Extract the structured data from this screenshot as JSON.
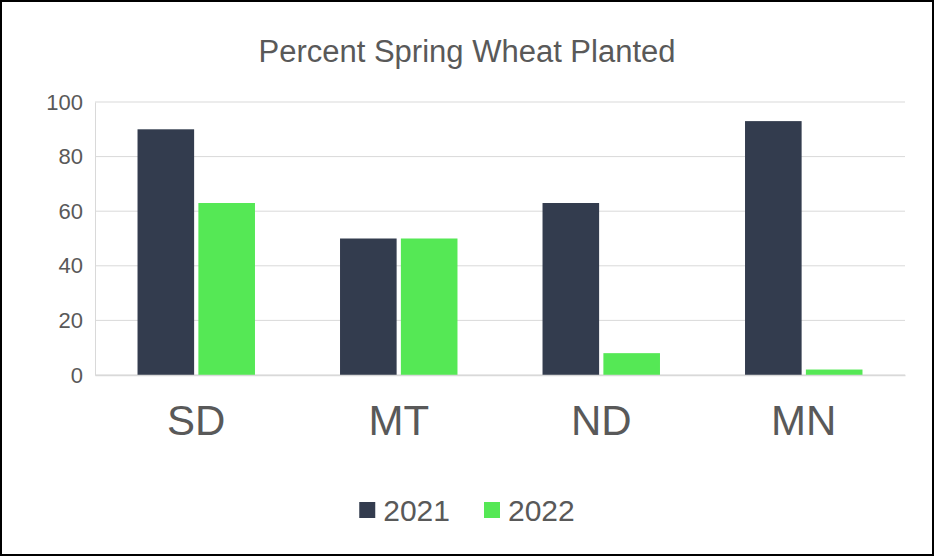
{
  "chart_data": {
    "type": "bar",
    "title": "Percent Spring Wheat Planted",
    "categories": [
      "SD",
      "MT",
      "ND",
      "MN"
    ],
    "series": [
      {
        "name": "2021",
        "color": "#333c4e",
        "values": [
          90,
          50,
          63,
          93
        ]
      },
      {
        "name": "2022",
        "color": "#55e855",
        "values": [
          63,
          50,
          8,
          2
        ]
      }
    ],
    "ylim": [
      0,
      100
    ],
    "yticks": [
      0,
      20,
      40,
      60,
      80,
      100
    ],
    "grid": true,
    "legend": "bottom"
  }
}
